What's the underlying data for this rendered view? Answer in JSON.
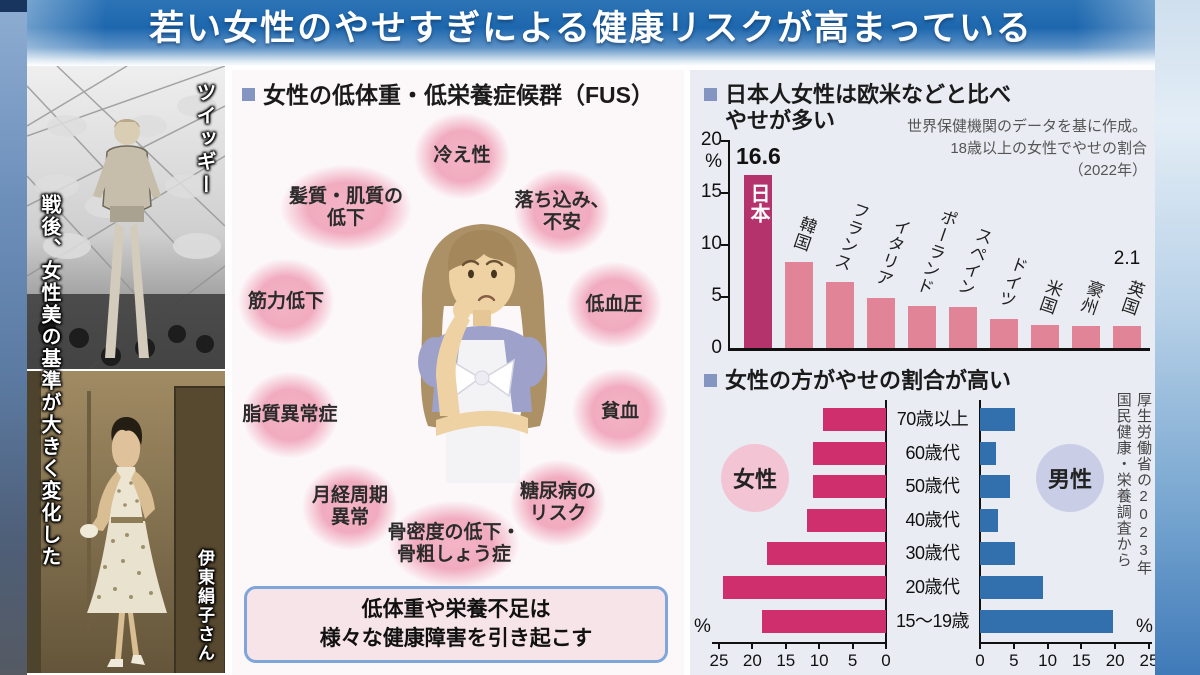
{
  "page_title": "若い女性のやせすぎによる健康リスクが高まっている",
  "left_strip": {
    "caption": "戦後、女性美の基準が大きく変化した",
    "photo_top_label": "ツイッギー",
    "photo_bottom_label": "伊東絹子さん"
  },
  "fus_panel": {
    "heading": "女性の低体重・低栄養症候群（FUS）",
    "symptoms": [
      "冷え性",
      "髪質・肌質の\n低下",
      "落ち込み、\n不安",
      "筋力低下",
      "低血圧",
      "脂質異常症",
      "貧血",
      "月経周期\n異常",
      "糖尿病の\nリスク",
      "骨密度の低下・\n骨粗しょう症"
    ],
    "conclusion": "低体重や栄養不足は\n様々な健康障害を引き起こす"
  },
  "chart_data": [
    {
      "type": "bar",
      "title": "日本人女性は欧米などと比べやせが多い",
      "title_display": "日本人女性は欧米などと比べ\nやせが多い",
      "note": "世界保健機関のデータを基に作成。18歳以上の女性でやせの割合（2022年）",
      "note_display": "世界保健機関のデータを基に作成。\n18歳以上の女性でやせの割合\n（2022年）",
      "categories": [
        "日本",
        "韓国",
        "フランス",
        "イタリア",
        "ポーランド",
        "スペイン",
        "ドイツ",
        "米国",
        "豪州",
        "英国"
      ],
      "values": [
        16.6,
        8.3,
        6.3,
        4.8,
        4.0,
        3.9,
        2.8,
        2.2,
        2.1,
        2.1
      ],
      "unit": "%",
      "ylim": [
        0,
        20
      ],
      "yticks": [
        0,
        5,
        10,
        15,
        20
      ],
      "highlight_category": "日本",
      "value_labels": {
        "日本": "16.6",
        "英国": "2.1"
      },
      "legend_position": "none",
      "grid": false
    },
    {
      "type": "bar",
      "layout": "horizontal-pyramid",
      "title": "女性の方がやせの割合が高い",
      "source_note": "厚生労働省の2023年国民健康・栄養調査から",
      "source_note_display": "厚生労働省の2023年\n国民健康・栄養調査から",
      "categories": [
        "70歳以上",
        "60歳代",
        "50歳代",
        "40歳代",
        "30歳代",
        "20歳代",
        "15～19歳"
      ],
      "series": [
        {
          "name": "女性",
          "values": [
            9.5,
            11.0,
            10.9,
            11.8,
            17.8,
            24.4,
            18.5
          ]
        },
        {
          "name": "男性",
          "values": [
            5.2,
            2.4,
            4.4,
            2.7,
            5.2,
            9.3,
            19.7
          ]
        }
      ],
      "xlim": [
        0,
        25
      ],
      "xticks": [
        0,
        5,
        10,
        15,
        20,
        25
      ],
      "unit": "%",
      "grid": false
    }
  ],
  "colors": {
    "banner_blue": "#1e6ab1",
    "bar_highlight": "#b5336c",
    "bar_normal": "#e18498",
    "female_bar": "#d02f6d",
    "male_bar": "#3170ac",
    "female_circle": "#f3c4d4",
    "male_circle": "#c9cee6",
    "panel_bg": "#e9ecf3",
    "fus_bg": "#fcf8fa",
    "bubble_pink": "#f1abbf",
    "conclusion_border": "#7fa6d9",
    "conclusion_bg": "#f7e4e9"
  }
}
